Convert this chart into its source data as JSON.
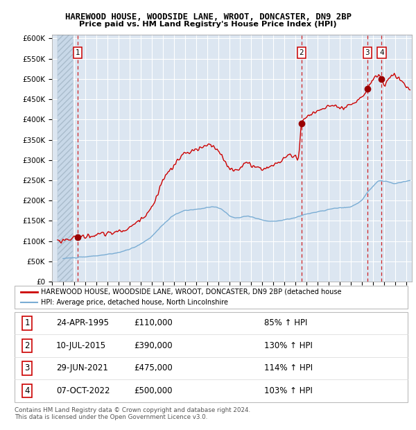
{
  "title": "HAREWOOD HOUSE, WOODSIDE LANE, WROOT, DONCASTER, DN9 2BP",
  "subtitle": "Price paid vs. HM Land Registry's House Price Index (HPI)",
  "ylabel_ticks": [
    "£0",
    "£50K",
    "£100K",
    "£150K",
    "£200K",
    "£250K",
    "£300K",
    "£350K",
    "£400K",
    "£450K",
    "£500K",
    "£550K",
    "£600K"
  ],
  "ytick_values": [
    0,
    50000,
    100000,
    150000,
    200000,
    250000,
    300000,
    350000,
    400000,
    450000,
    500000,
    550000,
    600000
  ],
  "xlim": [
    1993.5,
    2025.5
  ],
  "ylim": [
    0,
    610000
  ],
  "background_color": "#dce6f1",
  "hatch_region_end": 1994.9,
  "grid_color": "#ffffff",
  "sale_line_color": "#cc0000",
  "hpi_line_color": "#7aadd4",
  "sale_dot_color": "#990000",
  "dashed_line_color": "#cc0000",
  "transactions": [
    {
      "label": "1",
      "date_num": 1995.31,
      "price": 110000,
      "date_str": "24-APR-1995"
    },
    {
      "label": "2",
      "date_num": 2015.53,
      "price": 390000,
      "date_str": "10-JUL-2015"
    },
    {
      "label": "3",
      "date_num": 2021.49,
      "price": 475000,
      "date_str": "29-JUN-2021"
    },
    {
      "label": "4",
      "date_num": 2022.77,
      "price": 500000,
      "date_str": "07-OCT-2022"
    }
  ],
  "legend_sale_label": "HAREWOOD HOUSE, WOODSIDE LANE, WROOT, DONCASTER, DN9 2BP (detached house",
  "legend_hpi_label": "HPI: Average price, detached house, North Lincolnshire",
  "footer1": "Contains HM Land Registry data © Crown copyright and database right 2024.",
  "footer2": "This data is licensed under the Open Government Licence v3.0.",
  "table_rows": [
    [
      "1",
      "24-APR-1995",
      "£110,000",
      "85% ↑ HPI"
    ],
    [
      "2",
      "10-JUL-2015",
      "£390,000",
      "130% ↑ HPI"
    ],
    [
      "3",
      "29-JUN-2021",
      "£475,000",
      "114% ↑ HPI"
    ],
    [
      "4",
      "07-OCT-2022",
      "£500,000",
      "103% ↑ HPI"
    ]
  ]
}
